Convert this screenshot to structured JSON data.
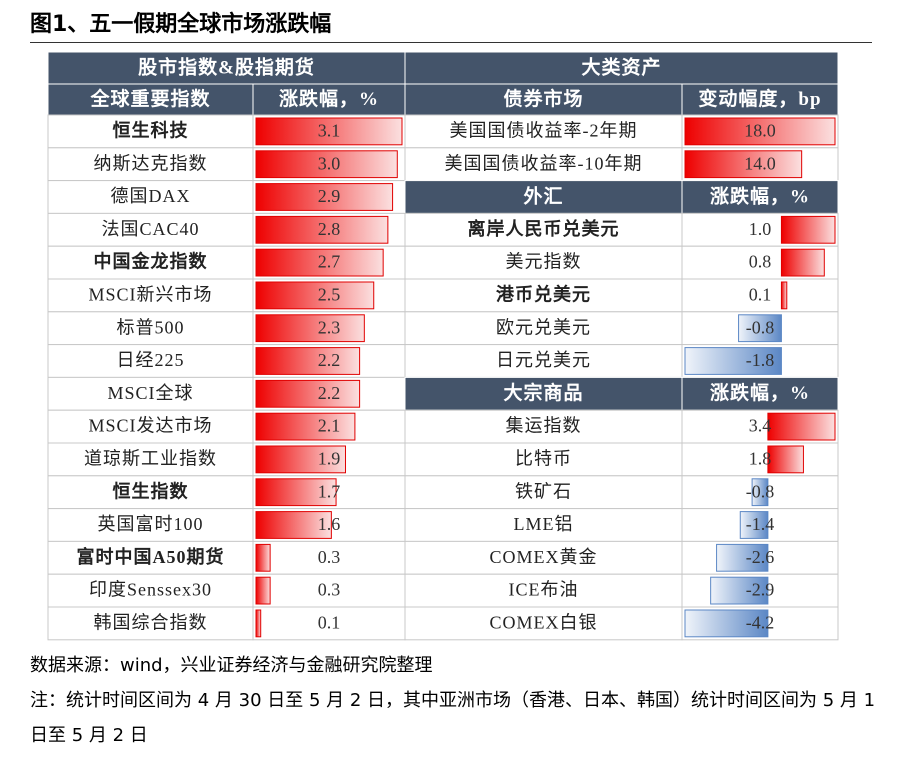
{
  "title": "图1、五一假期全球市场涨跌幅",
  "table": {
    "group_headers": [
      "股市指数&股指期货",
      "大类资产"
    ],
    "left": {
      "headers": [
        "全球重要指数",
        "涨跌幅，%"
      ],
      "rows": [
        {
          "name": "恒生科技",
          "value": {
            "value": 3.1,
            "label": "3.1"
          },
          "bold": true
        },
        {
          "name": "纳斯达克指数",
          "value": {
            "value": 3.0,
            "label": "3.0"
          }
        },
        {
          "name": "德国DAX",
          "value": {
            "value": 2.9,
            "label": "2.9"
          }
        },
        {
          "name": "法国CAC40",
          "value": {
            "value": 2.8,
            "label": "2.8"
          }
        },
        {
          "name": "中国金龙指数",
          "value": {
            "value": 2.7,
            "label": "2.7"
          },
          "bold": true
        },
        {
          "name": "MSCI新兴市场",
          "value": {
            "value": 2.5,
            "label": "2.5"
          }
        },
        {
          "name": "标普500",
          "value": {
            "value": 2.3,
            "label": "2.3"
          }
        },
        {
          "name": "日经225",
          "value": {
            "value": 2.2,
            "label": "2.2"
          }
        },
        {
          "name": "MSCI全球",
          "value": {
            "value": 2.2,
            "label": "2.2"
          }
        },
        {
          "name": "MSCI发达市场",
          "value": {
            "value": 2.1,
            "label": "2.1"
          }
        },
        {
          "name": "道琼斯工业指数",
          "value": {
            "value": 1.9,
            "label": "1.9"
          }
        },
        {
          "name": "恒生指数",
          "value": {
            "value": 1.7,
            "label": "1.7"
          },
          "bold": true
        },
        {
          "name": "英国富时100",
          "value": {
            "value": 1.6,
            "label": "1.6"
          }
        },
        {
          "name": "富时中国A50期货",
          "value": {
            "value": 0.3,
            "label": "0.3"
          },
          "bold": true
        },
        {
          "name": "印度Senssex30",
          "value": {
            "value": 0.3,
            "label": "0.3"
          }
        },
        {
          "name": "韩国综合指数",
          "value": {
            "value": 0.1,
            "label": "0.1"
          }
        }
      ]
    },
    "right": {
      "sections": [
        {
          "headers": [
            "债券市场",
            "变动幅度，bp"
          ],
          "rows": [
            {
              "name": "美国国债收益率-2年期",
              "value": {
                "value": 18.0,
                "label": "18.0"
              }
            },
            {
              "name": "美国国债收益率-10年期",
              "value": {
                "value": 14.0,
                "label": "14.0"
              }
            }
          ]
        },
        {
          "headers": [
            "外汇",
            "涨跌幅，%"
          ],
          "rows": [
            {
              "name": "离岸人民币兑美元",
              "value": {
                "value": 1.0,
                "label": "1.0"
              },
              "bold": true
            },
            {
              "name": "美元指数",
              "value": {
                "value": 0.8,
                "label": "0.8"
              }
            },
            {
              "name": "港币兑美元",
              "value": {
                "value": 0.1,
                "label": "0.1"
              },
              "bold": true
            },
            {
              "name": "欧元兑美元",
              "value": {
                "value": -0.8,
                "label": "-0.8"
              }
            },
            {
              "name": "日元兑美元",
              "value": {
                "value": -1.8,
                "label": "-1.8"
              }
            }
          ]
        },
        {
          "headers": [
            "大宗商品",
            "涨跌幅，%"
          ],
          "rows": [
            {
              "name": "集运指数",
              "value": {
                "value": 3.4,
                "label": "3.4"
              }
            },
            {
              "name": "比特币",
              "value": {
                "value": 1.8,
                "label": "1.8"
              }
            },
            {
              "name": "铁矿石",
              "value": {
                "value": -0.8,
                "label": "-0.8"
              }
            },
            {
              "name": "LME铝",
              "value": {
                "value": -1.4,
                "label": "-1.4"
              }
            },
            {
              "name": "COMEX黄金",
              "value": {
                "value": -2.6,
                "label": "-2.6"
              }
            },
            {
              "name": "ICE布油",
              "value": {
                "value": -2.9,
                "label": "-2.9"
              }
            },
            {
              "name": "COMEX白银",
              "value": {
                "value": -4.2,
                "label": "-4.2"
              }
            }
          ]
        }
      ]
    }
  },
  "notes": [
    "数据来源：wind，兴业证券经济与金融研究院整理",
    "注：统计时间区间为 4 月 30 日至 5 月 2 日，其中亚洲市场（香港、日本、韩国）统计时间区间为 5 月 1 日至 5 月 2 日"
  ]
}
